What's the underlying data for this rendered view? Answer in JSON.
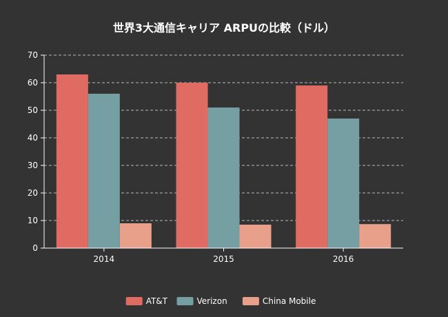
{
  "chart_data": {
    "type": "bar",
    "title": "世界3大通信キャリア ARPUの比較（ドル）",
    "categories": [
      "2014",
      "2015",
      "2016"
    ],
    "series": [
      {
        "name": "AT&T",
        "values": [
          63,
          60,
          59
        ],
        "color": "#E06B62"
      },
      {
        "name": "Verizon",
        "values": [
          56,
          51,
          47
        ],
        "color": "#769FA3"
      },
      {
        "name": "China Mobile",
        "values": [
          9,
          8.5,
          8.7
        ],
        "color": "#E8A08A"
      }
    ],
    "ylim": [
      0,
      70
    ],
    "yticks": [
      "0",
      "10",
      "20",
      "30",
      "40",
      "50",
      "60",
      "70"
    ],
    "grid": true,
    "legend": "bottom"
  }
}
